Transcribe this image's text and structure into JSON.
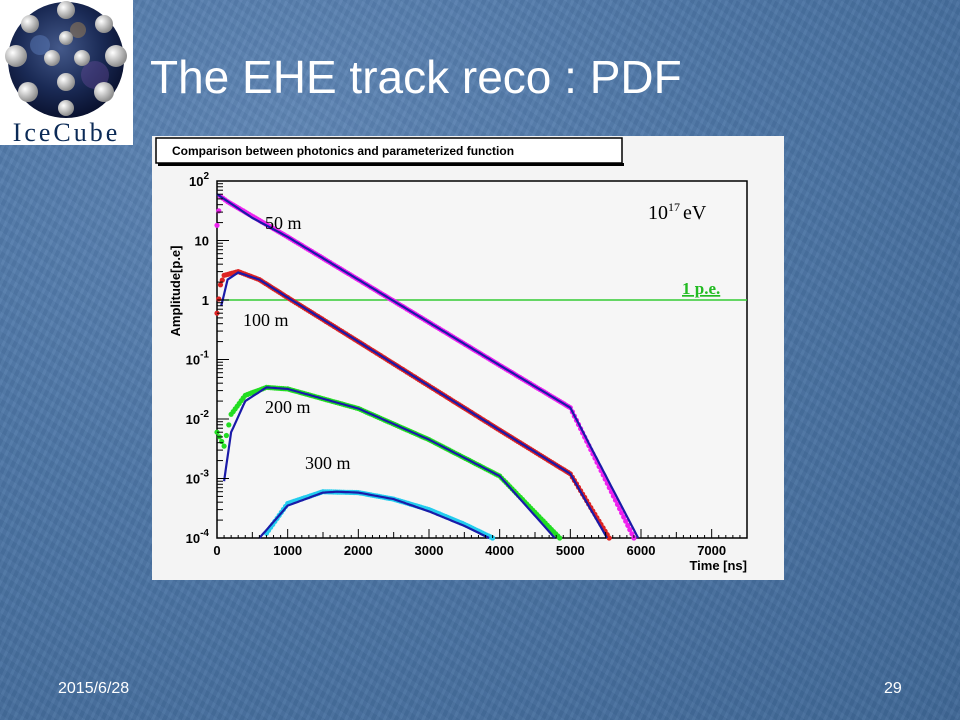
{
  "slide": {
    "title": "The EHE track reco : PDF",
    "date": "2015/6/28",
    "page_number": "29",
    "logo_text": "IceCube"
  },
  "chart_data": {
    "type": "scatter",
    "title": "Comparison between photonics and parameterized function",
    "xlabel": "Time [ns]",
    "ylabel": "Amplitude[p.e]",
    "xlim": [
      0,
      7500
    ],
    "ylim": [
      0.0001,
      100
    ],
    "y_scale": "log",
    "x_ticks": [
      0,
      1000,
      2000,
      3000,
      4000,
      5000,
      6000,
      7000
    ],
    "y_ticks": [
      {
        "value": 0.0001,
        "base": "10",
        "exp": "-4"
      },
      {
        "value": 0.001,
        "base": "10",
        "exp": "-3"
      },
      {
        "value": 0.01,
        "base": "10",
        "exp": "-2"
      },
      {
        "value": 0.1,
        "base": "10",
        "exp": "-1"
      },
      {
        "value": 1,
        "base": "1",
        "exp": ""
      },
      {
        "value": 10,
        "base": "10",
        "exp": ""
      },
      {
        "value": 100,
        "base": "10",
        "exp": "2"
      }
    ],
    "energy_label": {
      "base": "10",
      "exp": "17",
      "unit": "eV"
    },
    "threshold": {
      "label": "1 p.e.",
      "value": 1,
      "color": "#33cc33"
    },
    "fit_color": "#1a1aa8",
    "series": [
      {
        "name": "50 m",
        "color": "#ee22ee",
        "points": [
          [
            0,
            18
          ],
          [
            50,
            55
          ],
          [
            150,
            45
          ],
          [
            400,
            30
          ],
          [
            1000,
            11.5
          ],
          [
            2000,
            2.2
          ],
          [
            3000,
            0.42
          ],
          [
            4000,
            0.08
          ],
          [
            5000,
            0.0155
          ],
          [
            5900,
            0.0001
          ]
        ],
        "fit": [
          [
            0,
            60
          ],
          [
            500,
            24
          ],
          [
            1000,
            11.5
          ],
          [
            2000,
            2.2
          ],
          [
            3000,
            0.42
          ],
          [
            4000,
            0.08
          ],
          [
            5000,
            0.0155
          ],
          [
            5960,
            0.0001
          ]
        ]
      },
      {
        "name": "100 m",
        "color": "#dd2222",
        "points": [
          [
            0,
            0.6
          ],
          [
            50,
            1.8
          ],
          [
            100,
            2.6
          ],
          [
            300,
            3.0
          ],
          [
            600,
            2.2
          ],
          [
            1000,
            1.1
          ],
          [
            2000,
            0.2
          ],
          [
            3000,
            0.036
          ],
          [
            4000,
            0.0065
          ],
          [
            5000,
            0.0012
          ],
          [
            5550,
            0.0001
          ]
        ],
        "fit": [
          [
            60,
            0.8
          ],
          [
            150,
            2.2
          ],
          [
            300,
            2.9
          ],
          [
            600,
            2.2
          ],
          [
            1000,
            1.1
          ],
          [
            2000,
            0.2
          ],
          [
            3000,
            0.036
          ],
          [
            4000,
            0.0065
          ],
          [
            5000,
            0.0012
          ],
          [
            5520,
            0.0001
          ]
        ]
      },
      {
        "name": "200 m",
        "color": "#22dd22",
        "points": [
          [
            0,
            0.006
          ],
          [
            100,
            0.0035
          ],
          [
            200,
            0.012
          ],
          [
            400,
            0.025
          ],
          [
            700,
            0.034
          ],
          [
            1000,
            0.032
          ],
          [
            2000,
            0.015
          ],
          [
            3000,
            0.0045
          ],
          [
            4000,
            0.0011
          ],
          [
            4850,
            0.0001
          ]
        ],
        "fit": [
          [
            100,
            0.0009
          ],
          [
            200,
            0.006
          ],
          [
            400,
            0.02
          ],
          [
            700,
            0.034
          ],
          [
            1000,
            0.032
          ],
          [
            2000,
            0.015
          ],
          [
            3000,
            0.0045
          ],
          [
            4000,
            0.0011
          ],
          [
            4780,
            0.0001
          ]
        ]
      },
      {
        "name": "300 m",
        "color": "#22ccee",
        "points": [
          [
            700,
            0.00012
          ],
          [
            1000,
            0.00038
          ],
          [
            1500,
            0.0006
          ],
          [
            2000,
            0.00058
          ],
          [
            2500,
            0.00045
          ],
          [
            3000,
            0.0003
          ],
          [
            3500,
            0.00017
          ],
          [
            3900,
            0.0001
          ]
        ],
        "fit": [
          [
            600,
            0.0001
          ],
          [
            1000,
            0.00035
          ],
          [
            1500,
            0.00058
          ],
          [
            1700,
            0.0006
          ],
          [
            2000,
            0.00058
          ],
          [
            2500,
            0.00045
          ],
          [
            3000,
            0.00028
          ],
          [
            3500,
            0.00016
          ],
          [
            3850,
            0.0001
          ]
        ]
      }
    ]
  }
}
